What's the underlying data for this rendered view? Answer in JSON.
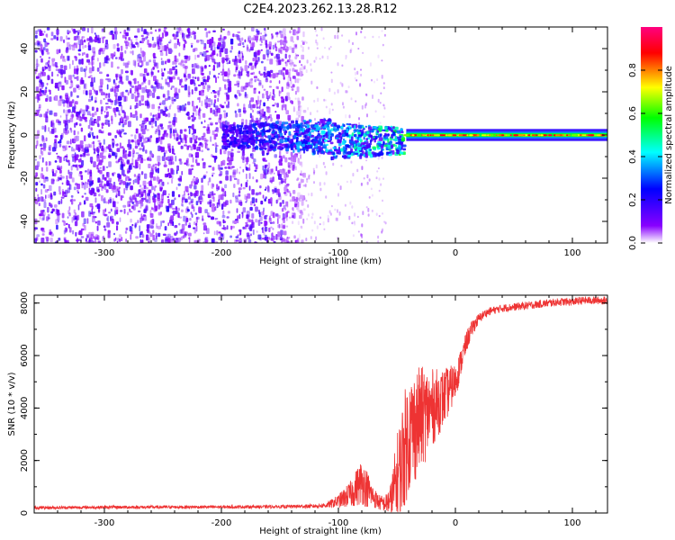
{
  "figure": {
    "title": "C2E4.2023.262.13.28.R12"
  },
  "chart_data": [
    {
      "type": "heatmap",
      "xlabel": "Height of straight line (km)",
      "ylabel": "Frequency (Hz)",
      "xlim": [
        -360,
        130
      ],
      "ylim": [
        -50,
        50
      ],
      "xticks": [
        -300,
        -200,
        -100,
        0,
        100
      ],
      "xtick_labels": [
        "-300",
        "-200",
        "-100",
        "0",
        "100"
      ],
      "yticks": [
        -40,
        -20,
        0,
        20,
        40
      ],
      "ytick_labels": [
        "-40",
        "-20",
        "0",
        "20",
        "40"
      ],
      "grid": false,
      "colorbar": {
        "label": "Normalized spectral amplitude",
        "range": [
          0,
          1
        ],
        "ticks": [
          0,
          0.2,
          0.4,
          0.6,
          0.8
        ],
        "tick_labels": [
          "0.0",
          "0.2",
          "0.4",
          "0.6",
          "0.8"
        ],
        "colormap": [
          "#ffffff",
          "#8800ff",
          "#0000ff",
          "#00ffff",
          "#00ff00",
          "#ffff00",
          "#ff0000",
          "#ff0080"
        ]
      },
      "regions": [
        {
          "x_range": [
            -360,
            -130
          ],
          "freq_range": [
            -50,
            50
          ],
          "amplitude_range": [
            0.05,
            0.15
          ],
          "description_key": "noise"
        },
        {
          "x_range": [
            -130,
            -60
          ],
          "freq_range": [
            -50,
            50
          ],
          "amplitude_range": [
            0.0,
            0.05
          ],
          "description_key": "sparse"
        },
        {
          "x_range": [
            -200,
            -45
          ],
          "freq_range": [
            -8,
            8
          ],
          "amplitude_range": [
            0.1,
            0.45
          ],
          "description_key": "emerging-carrier"
        },
        {
          "x_range": [
            -45,
            130
          ],
          "freq_range": [
            -2,
            2
          ],
          "amplitude_range": [
            0.3,
            0.95
          ],
          "description_key": "carrier"
        }
      ]
    },
    {
      "type": "line",
      "xlabel": "Height of straight line (km)",
      "ylabel": "SNR (10 * v/v)",
      "xlim": [
        -360,
        130
      ],
      "ylim": [
        0,
        8300
      ],
      "xticks": [
        -300,
        -200,
        -100,
        0,
        100
      ],
      "xtick_labels": [
        "-300",
        "-200",
        "-100",
        "0",
        "100"
      ],
      "yticks": [
        0,
        2000,
        4000,
        6000,
        8000
      ],
      "ytick_labels": [
        "0",
        "2000",
        "4000",
        "6000",
        "8000"
      ],
      "grid": false,
      "series": [
        {
          "color": "#ee3333",
          "x": [
            -360,
            -300,
            -200,
            -150,
            -120,
            -110,
            -100,
            -90,
            -80,
            -75,
            -70,
            -65,
            -60,
            -55,
            -50,
            -45,
            -40,
            -35,
            -30,
            -25,
            -20,
            -15,
            -10,
            -5,
            0,
            5,
            10,
            15,
            20,
            25,
            30,
            35,
            40,
            50,
            60,
            70,
            80,
            90,
            100,
            110,
            120,
            130
          ],
          "y": [
            200,
            220,
            230,
            240,
            260,
            300,
            450,
            700,
            1200,
            900,
            600,
            400,
            350,
            500,
            1200,
            2200,
            3000,
            3300,
            3600,
            3800,
            4000,
            4200,
            4400,
            4700,
            5000,
            5800,
            6600,
            7100,
            7400,
            7600,
            7700,
            7750,
            7800,
            7850,
            7900,
            7950,
            8000,
            8050,
            8050,
            8100,
            8100,
            8100
          ],
          "noise_envelope": [
            60,
            60,
            60,
            60,
            80,
            100,
            250,
            500,
            900,
            700,
            400,
            300,
            300,
            700,
            1800,
            2200,
            2300,
            2200,
            2000,
            1800,
            1500,
            1300,
            1100,
            900,
            700,
            500,
            400,
            300,
            200,
            150,
            150,
            150,
            150,
            150,
            150,
            150,
            150,
            150,
            150,
            150,
            150,
            150
          ]
        }
      ]
    }
  ]
}
